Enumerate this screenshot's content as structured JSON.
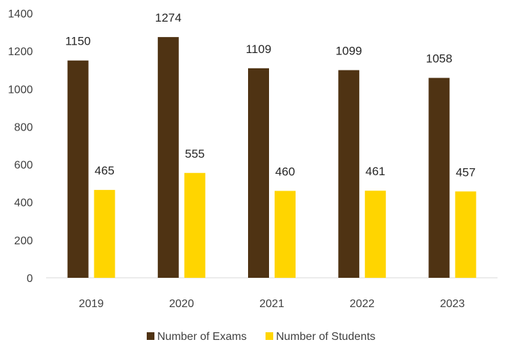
{
  "chart_data": {
    "type": "bar",
    "categories": [
      "2019",
      "2020",
      "2021",
      "2022",
      "2023"
    ],
    "series": [
      {
        "name": "Number of Exams",
        "values": [
          1150,
          1274,
          1109,
          1099,
          1058
        ],
        "color": "#4f3313"
      },
      {
        "name": "Number of Students",
        "values": [
          465,
          555,
          460,
          461,
          457
        ],
        "color": "#ffd500"
      }
    ],
    "y_ticks": [
      "0",
      "200",
      "400",
      "600",
      "800",
      "1000",
      "1200",
      "1400"
    ],
    "ylim": [
      0,
      1400
    ],
    "grid": false,
    "legend_position": "bottom",
    "data_labels": true
  }
}
